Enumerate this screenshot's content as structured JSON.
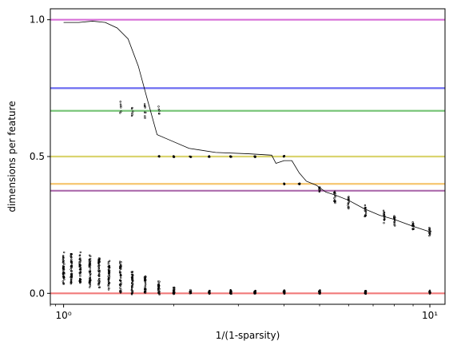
{
  "chart_data": {
    "type": "scatter",
    "title": "",
    "xlabel": "1/(1-sparsity)",
    "ylabel": "dimensions per feature",
    "xscale": "log",
    "xlim": [
      0.92,
      11.0
    ],
    "ylim": [
      -0.04,
      1.04
    ],
    "grid": false,
    "x_ticks": [
      {
        "value": 1,
        "label": "10⁰"
      },
      {
        "value": 10,
        "label": "10¹"
      }
    ],
    "y_ticks": [
      {
        "value": 0.0,
        "label": "0.0"
      },
      {
        "value": 0.5,
        "label": "0.5"
      },
      {
        "value": 1.0,
        "label": "1.0"
      }
    ],
    "reference_lines": [
      {
        "y": 1.0,
        "color": "#d35fd3"
      },
      {
        "y": 0.75,
        "color": "#5b5bef"
      },
      {
        "y": 0.667,
        "color": "#6abf6a"
      },
      {
        "y": 0.5,
        "color": "#d6cf60"
      },
      {
        "y": 0.4,
        "color": "#f5bf5f"
      },
      {
        "y": 0.375,
        "color": "#a35aa3"
      },
      {
        "y": 0.0,
        "color": "#ef6b6b"
      }
    ],
    "series": [
      {
        "kind": "line",
        "color": "#000000",
        "points": [
          [
            1.0,
            0.99
          ],
          [
            1.1,
            0.99
          ],
          [
            1.2,
            0.995
          ],
          [
            1.3,
            0.99
          ],
          [
            1.4,
            0.97
          ],
          [
            1.5,
            0.93
          ],
          [
            1.6,
            0.83
          ],
          [
            1.7,
            0.7
          ],
          [
            1.8,
            0.58
          ],
          [
            1.95,
            0.56
          ],
          [
            2.2,
            0.53
          ],
          [
            2.6,
            0.515
          ],
          [
            3.2,
            0.51
          ],
          [
            3.7,
            0.505
          ],
          [
            3.8,
            0.475
          ],
          [
            4.0,
            0.485
          ],
          [
            4.2,
            0.485
          ],
          [
            4.4,
            0.44
          ],
          [
            4.6,
            0.41
          ],
          [
            4.9,
            0.395
          ],
          [
            5.2,
            0.37
          ],
          [
            5.5,
            0.36
          ],
          [
            6.0,
            0.34
          ],
          [
            6.6,
            0.31
          ],
          [
            7.3,
            0.285
          ],
          [
            8.0,
            0.27
          ],
          [
            9.0,
            0.245
          ],
          [
            10.0,
            0.225
          ]
        ]
      },
      {
        "kind": "scatter",
        "color": "#000000",
        "clusters": [
          {
            "x": 1.0,
            "y": 0.09,
            "spread": 0.05,
            "count": 45
          },
          {
            "x": 1.05,
            "y": 0.09,
            "spread": 0.05,
            "count": 45
          },
          {
            "x": 1.11,
            "y": 0.09,
            "spread": 0.05,
            "count": 45
          },
          {
            "x": 1.18,
            "y": 0.08,
            "spread": 0.05,
            "count": 45
          },
          {
            "x": 1.25,
            "y": 0.08,
            "spread": 0.05,
            "count": 45
          },
          {
            "x": 1.33,
            "y": 0.07,
            "spread": 0.05,
            "count": 40
          },
          {
            "x": 1.43,
            "y": 0.06,
            "spread": 0.05,
            "count": 40
          },
          {
            "x": 1.54,
            "y": 0.04,
            "spread": 0.04,
            "count": 35
          },
          {
            "x": 1.67,
            "y": 0.03,
            "spread": 0.03,
            "count": 30
          },
          {
            "x": 1.82,
            "y": 0.02,
            "spread": 0.02,
            "count": 28
          },
          {
            "x": 2.0,
            "y": 0.01,
            "spread": 0.012,
            "count": 22
          },
          {
            "x": 2.22,
            "y": 0.005,
            "spread": 0.006,
            "count": 18
          },
          {
            "x": 2.5,
            "y": 0.005,
            "spread": 0.006,
            "count": 18
          },
          {
            "x": 2.86,
            "y": 0.005,
            "spread": 0.006,
            "count": 18
          },
          {
            "x": 3.33,
            "y": 0.005,
            "spread": 0.006,
            "count": 18
          },
          {
            "x": 4.0,
            "y": 0.005,
            "spread": 0.006,
            "count": 18
          },
          {
            "x": 5.0,
            "y": 0.005,
            "spread": 0.006,
            "count": 18
          },
          {
            "x": 6.67,
            "y": 0.005,
            "spread": 0.006,
            "count": 18
          },
          {
            "x": 10.0,
            "y": 0.005,
            "spread": 0.006,
            "count": 18
          },
          {
            "x": 1.82,
            "y": 0.5,
            "spread": 0.002,
            "count": 6
          },
          {
            "x": 2.0,
            "y": 0.5,
            "spread": 0.002,
            "count": 6
          },
          {
            "x": 2.22,
            "y": 0.5,
            "spread": 0.002,
            "count": 6
          },
          {
            "x": 2.5,
            "y": 0.5,
            "spread": 0.002,
            "count": 6
          },
          {
            "x": 2.86,
            "y": 0.5,
            "spread": 0.002,
            "count": 6
          },
          {
            "x": 3.33,
            "y": 0.5,
            "spread": 0.002,
            "count": 6
          },
          {
            "x": 4.0,
            "y": 0.5,
            "spread": 0.002,
            "count": 6
          },
          {
            "x": 4.0,
            "y": 0.4,
            "spread": 0.002,
            "count": 6
          },
          {
            "x": 4.4,
            "y": 0.4,
            "spread": 0.002,
            "count": 6
          },
          {
            "x": 5.0,
            "y": 0.38,
            "spread": 0.01,
            "count": 10
          },
          {
            "x": 5.5,
            "y": 0.35,
            "spread": 0.02,
            "count": 14
          },
          {
            "x": 6.0,
            "y": 0.33,
            "spread": 0.02,
            "count": 14
          },
          {
            "x": 6.67,
            "y": 0.3,
            "spread": 0.02,
            "count": 14
          },
          {
            "x": 7.5,
            "y": 0.28,
            "spread": 0.02,
            "count": 14
          },
          {
            "x": 8.0,
            "y": 0.27,
            "spread": 0.02,
            "count": 14
          },
          {
            "x": 9.0,
            "y": 0.245,
            "spread": 0.015,
            "count": 14
          },
          {
            "x": 10.0,
            "y": 0.225,
            "spread": 0.012,
            "count": 14
          },
          {
            "x": 1.43,
            "y": 0.68,
            "spread": 0.02,
            "count": 6
          },
          {
            "x": 1.54,
            "y": 0.66,
            "spread": 0.02,
            "count": 6
          },
          {
            "x": 1.67,
            "y": 0.67,
            "spread": 0.025,
            "count": 8
          },
          {
            "x": 1.82,
            "y": 0.66,
            "spread": 0.02,
            "count": 5
          }
        ]
      }
    ]
  }
}
